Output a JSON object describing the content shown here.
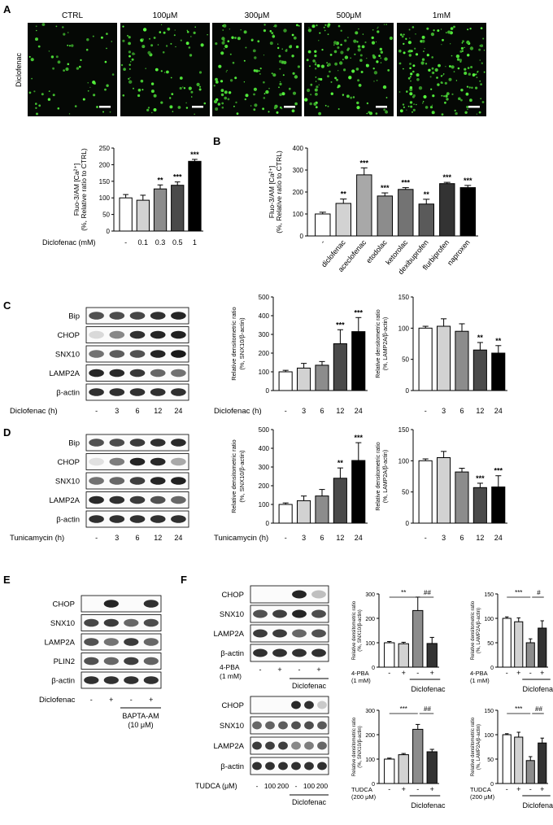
{
  "panels": {
    "A": {
      "letter": "A",
      "row_label": "Diclofenac",
      "columns": [
        "CTRL",
        "100μM",
        "300μM",
        "500μM",
        "1mM"
      ]
    },
    "B": {
      "letter": "B"
    },
    "C": {
      "letter": "C",
      "blot_rows": [
        "Bip",
        "CHOP",
        "SNX10",
        "LAMP2A",
        "β-actin"
      ],
      "blot_xlabel": "Diclofenac (h)",
      "blot_ticks": [
        "-",
        "3",
        "6",
        "12",
        "24"
      ]
    },
    "D": {
      "letter": "D",
      "blot_rows": [
        "Bip",
        "CHOP",
        "SNX10",
        "LAMP2A",
        "β-actin"
      ],
      "blot_xlabel": "Tunicamycin (h)",
      "blot_ticks": [
        "-",
        "3",
        "6",
        "12",
        "24"
      ]
    },
    "E": {
      "letter": "E",
      "blot_rows": [
        "CHOP",
        "SNX10",
        "LAMP2A",
        "PLIN2",
        "β-actin"
      ],
      "diclofenac_label": "Diclofenac",
      "diclofenac_ticks": [
        "-",
        "+",
        "-",
        "+"
      ],
      "bapta_label_1": "BAPTA-AM",
      "bapta_label_2": "(10 μM)"
    },
    "F": {
      "letter": "F",
      "top_blot_rows": [
        "CHOP",
        "SNX10",
        "LAMP2A",
        "β-actin"
      ],
      "top_treat_1": "4-PBA",
      "top_treat_2": "(1 mM)",
      "top_ticks": [
        "-",
        "+",
        "-",
        "+"
      ],
      "top_group": "Diclofenac",
      "bottom_blot_rows": [
        "CHOP",
        "SNX10",
        "LAMP2A",
        "β-actin"
      ],
      "bottom_treat": "TUDCA (μM)",
      "bottom_ticks": [
        "-",
        "100",
        "200",
        "-",
        "100",
        "200"
      ],
      "bottom_group": "Diclofenac"
    }
  },
  "chart_data": [
    {
      "id": "A-bar",
      "type": "bar",
      "ylabel_1": "Fluo-3/AM [Ca²⁺]",
      "ylabel_2": "(%, Relative ratio to CTRL)",
      "xlabel": "Diclofenac (mM)",
      "categories": [
        "-",
        "0.1",
        "0.3",
        "0.5",
        "1"
      ],
      "values": [
        100,
        93,
        127,
        138,
        210
      ],
      "errors": [
        10,
        15,
        12,
        10,
        6
      ],
      "sig": [
        "",
        "",
        "**",
        "***",
        "***"
      ],
      "ylim": [
        0,
        250
      ],
      "yticks": [
        0,
        50,
        100,
        150,
        200,
        250
      ],
      "colors": [
        "#ffffff",
        "#d2d2d2",
        "#8c8c8c",
        "#4a4a4a",
        "#000000"
      ]
    },
    {
      "id": "B-bar",
      "type": "bar",
      "letter": "B",
      "ylabel_1": "Fluo-3/AM [Ca²⁺]",
      "ylabel_2": "(%, Relative ratio to CTRL)",
      "categories": [
        "-",
        "diclofenac",
        "aceclofenac",
        "etodolac",
        "ketorolac",
        "dexibuprofen",
        "flurbiprofen",
        "naproxen"
      ],
      "values": [
        100,
        148,
        278,
        182,
        212,
        145,
        238,
        220
      ],
      "errors": [
        8,
        20,
        32,
        14,
        8,
        22,
        6,
        10
      ],
      "sig": [
        "",
        "**",
        "***",
        "***",
        "***",
        "**",
        "***",
        "***"
      ],
      "ylim": [
        0,
        400
      ],
      "yticks": [
        0,
        100,
        200,
        300,
        400
      ],
      "colors": [
        "#ffffff",
        "#d2d2d2",
        "#a8a8a8",
        "#8c8c8c",
        "#737373",
        "#5a5a5a",
        "#333333",
        "#000000"
      ]
    },
    {
      "id": "C-snx10",
      "type": "bar",
      "ylabel_1": "Relative densitometric ratio",
      "ylabel_2": "(%, SNX10/β-actin)",
      "xlabel": "Diclofenac (h)",
      "categories": [
        "-",
        "3",
        "6",
        "12",
        "24"
      ],
      "values": [
        100,
        120,
        135,
        250,
        315
      ],
      "errors": [
        8,
        25,
        20,
        75,
        75
      ],
      "sig": [
        "",
        "",
        "",
        "***",
        "***"
      ],
      "ylim": [
        0,
        500
      ],
      "yticks": [
        0,
        100,
        200,
        300,
        400,
        500
      ],
      "colors": [
        "#ffffff",
        "#d2d2d2",
        "#8c8c8c",
        "#4a4a4a",
        "#000000"
      ]
    },
    {
      "id": "C-lamp2a",
      "type": "bar",
      "ylabel_1": "Relative densitometric ratio",
      "ylabel_2": "(%, LAMP2A/β-actin)",
      "xlabel": "",
      "categories": [
        "-",
        "3",
        "6",
        "12",
        "24"
      ],
      "values": [
        100,
        103,
        95,
        65,
        60
      ],
      "errors": [
        3,
        12,
        12,
        12,
        12
      ],
      "sig": [
        "",
        "",
        "",
        "**",
        "**"
      ],
      "ylim": [
        0,
        150
      ],
      "yticks": [
        0,
        50,
        100,
        150
      ],
      "colors": [
        "#ffffff",
        "#d2d2d2",
        "#8c8c8c",
        "#4a4a4a",
        "#000000"
      ]
    },
    {
      "id": "D-snx10",
      "type": "bar",
      "ylabel_1": "Relative densitometric ratio",
      "ylabel_2": "(%, SNX10/β-actin)",
      "xlabel": "Tunicamycin (h)",
      "categories": [
        "-",
        "3",
        "6",
        "12",
        "24"
      ],
      "values": [
        100,
        120,
        145,
        240,
        335
      ],
      "errors": [
        8,
        25,
        35,
        55,
        95
      ],
      "sig": [
        "",
        "",
        "",
        "**",
        "***"
      ],
      "ylim": [
        0,
        500
      ],
      "yticks": [
        0,
        100,
        200,
        300,
        400,
        500
      ],
      "colors": [
        "#ffffff",
        "#d2d2d2",
        "#8c8c8c",
        "#4a4a4a",
        "#000000"
      ]
    },
    {
      "id": "D-lamp2a",
      "type": "bar",
      "ylabel_1": "Relative densitometric ratio",
      "ylabel_2": "(%, LAMP2A/β-actin)",
      "xlabel": "",
      "categories": [
        "-",
        "3",
        "6",
        "12",
        "24"
      ],
      "values": [
        100,
        105,
        82,
        57,
        58
      ],
      "errors": [
        3,
        10,
        6,
        7,
        18
      ],
      "sig": [
        "",
        "",
        "",
        "***",
        "***"
      ],
      "ylim": [
        0,
        150
      ],
      "yticks": [
        0,
        50,
        100,
        150
      ],
      "colors": [
        "#ffffff",
        "#d2d2d2",
        "#8c8c8c",
        "#4a4a4a",
        "#000000"
      ]
    },
    {
      "id": "F-pba-snx10",
      "type": "bar",
      "ylabel_1": "Relative densitometric ratio",
      "ylabel_2": "(%, SNX10/β-actin)",
      "treat_1": "4-PBA",
      "treat_2": "(1 mM)",
      "ticks": [
        "-",
        "+",
        "-",
        "+"
      ],
      "group": "Diclofenac",
      "values": [
        100,
        96,
        232,
        97
      ],
      "errors": [
        5,
        6,
        55,
        25
      ],
      "sig_left": "**",
      "sig_right": "##",
      "ylim": [
        0,
        300
      ],
      "yticks": [
        0,
        100,
        200,
        300
      ],
      "colors": [
        "#ffffff",
        "#d2d2d2",
        "#8c8c8c",
        "#333333"
      ]
    },
    {
      "id": "F-pba-lamp2a",
      "type": "bar",
      "ylabel_1": "Relative densitometric ratio",
      "ylabel_2": "(%, LAMP2A/β-actin)",
      "treat_1": "4-PBA",
      "treat_2": "(1 mM)",
      "ticks": [
        "-",
        "+",
        "-",
        "+"
      ],
      "group": "Diclofenac",
      "values": [
        100,
        93,
        50,
        80
      ],
      "errors": [
        3,
        8,
        8,
        15
      ],
      "sig_left": "***",
      "sig_right": "#",
      "ylim": [
        0,
        150
      ],
      "yticks": [
        0,
        50,
        100,
        150
      ],
      "colors": [
        "#ffffff",
        "#d2d2d2",
        "#8c8c8c",
        "#333333"
      ]
    },
    {
      "id": "F-tudca-snx10",
      "type": "bar",
      "ylabel_1": "Relative densitometric ratio",
      "ylabel_2": "(%, SNX10/β-actin)",
      "treat_1": "TUDCA",
      "treat_2": "(200 μM)",
      "ticks": [
        "-",
        "+",
        "-",
        "+"
      ],
      "group": "Diclofenac",
      "values": [
        100,
        118,
        222,
        130
      ],
      "errors": [
        4,
        5,
        20,
        10
      ],
      "sig_left": "***",
      "sig_right": "##",
      "ylim": [
        0,
        300
      ],
      "yticks": [
        0,
        100,
        200,
        300
      ],
      "colors": [
        "#ffffff",
        "#d2d2d2",
        "#8c8c8c",
        "#333333"
      ]
    },
    {
      "id": "F-tudca-lamp2a",
      "type": "bar",
      "ylabel_1": "Relative densitometric ratio",
      "ylabel_2": "(%, LAMP2A/β-actin)",
      "treat_1": "TUDCA",
      "treat_2": "(200 μM)",
      "ticks": [
        "-",
        "+",
        "-",
        "+"
      ],
      "group": "Diclofenac",
      "values": [
        100,
        95,
        47,
        83
      ],
      "errors": [
        2,
        10,
        8,
        10
      ],
      "sig_left": "***",
      "sig_right": "##",
      "ylim": [
        0,
        150
      ],
      "yticks": [
        0,
        50,
        100,
        150
      ],
      "colors": [
        "#ffffff",
        "#d2d2d2",
        "#8c8c8c",
        "#333333"
      ]
    }
  ]
}
